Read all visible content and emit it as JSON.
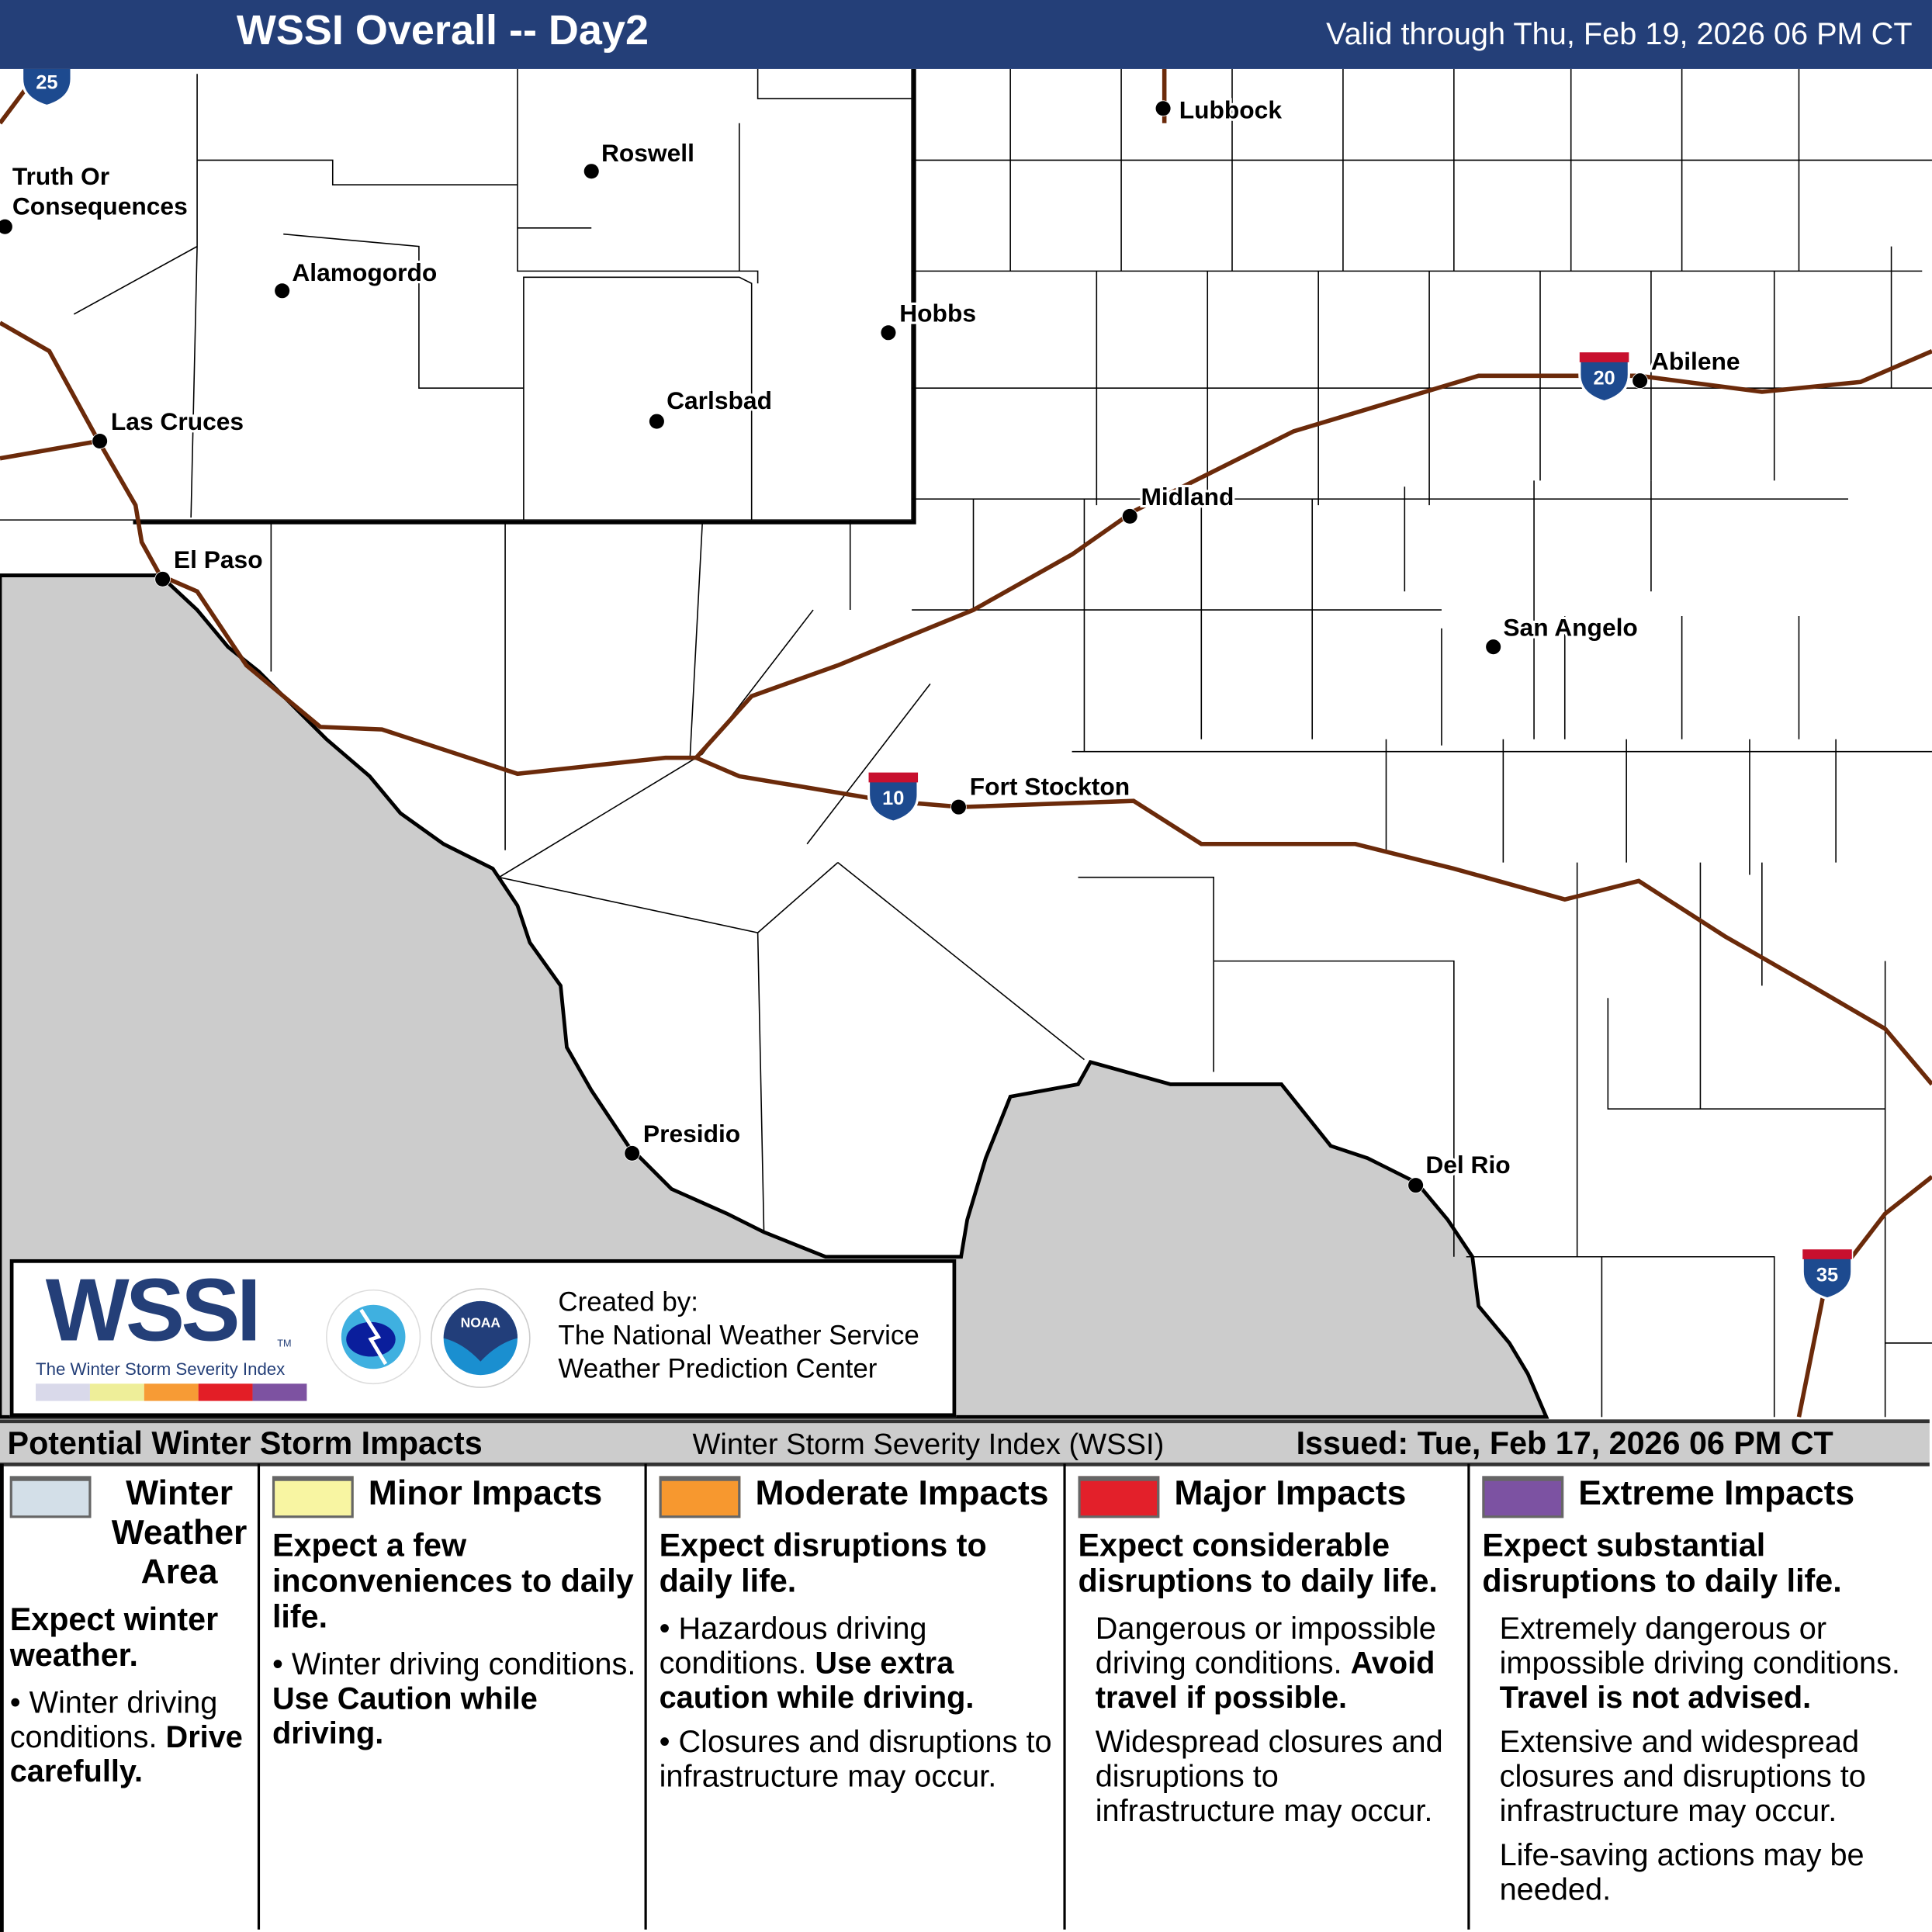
{
  "header": {
    "title": "WSSI Overall -- Day2",
    "valid": "Valid through Thu, Feb 19, 2026 06 PM CT",
    "color": "#243f78"
  },
  "map": {
    "land_color": "#ffffff",
    "mexico_color": "#cccccc",
    "road_color": "#6b2a0a",
    "cities": [
      {
        "name": "Lubbock"
      },
      {
        "name": "Roswell"
      },
      {
        "name": "Truth Or Consequences"
      },
      {
        "name": "Alamogordo"
      },
      {
        "name": "Hobbs"
      },
      {
        "name": "Abilene"
      },
      {
        "name": "Carlsbad"
      },
      {
        "name": "Las Cruces"
      },
      {
        "name": "Midland"
      },
      {
        "name": "El Paso"
      },
      {
        "name": "San Angelo"
      },
      {
        "name": "Fort Stockton"
      },
      {
        "name": "Presidio"
      },
      {
        "name": "Del Rio"
      }
    ],
    "shields": [
      {
        "route": "25"
      },
      {
        "route": "20"
      },
      {
        "route": "10"
      },
      {
        "route": "35"
      }
    ]
  },
  "logo": {
    "wordmark": "WSSI",
    "tm": "TM",
    "subtitle": "The Winter Storm Severity Index",
    "scale_colors": [
      "#d9d9ea",
      "#eeee99",
      "#f79b35",
      "#e31e26",
      "#7d52a1"
    ],
    "nws_text": "NATIONAL WEATHER SERVICE",
    "noaa_text": "NOAA",
    "created_by": "Created by:",
    "org1": "The National Weather Service",
    "org2": "Weather Prediction Center"
  },
  "strip": {
    "left": "Potential Winter Storm Impacts",
    "center": "Winter Storm Severity Index (WSSI)",
    "issued": "Issued: Tue, Feb 17, 2026 06 PM CT"
  },
  "legend": [
    {
      "title": "Winter Weather Area",
      "color": "#d3dfe8",
      "headline": "Expect winter weather.",
      "b1": "Winter driving conditions.",
      "b1_bold": "Drive carefully."
    },
    {
      "title": "Minor Impacts",
      "color": "#f8f5a2",
      "headline": "Expect a few inconveniences to daily life.",
      "b1": "Winter driving conditions.",
      "b1_bold": "Use Caution while driving."
    },
    {
      "title": "Moderate Impacts",
      "color": "#f7982f",
      "headline": "Expect disruptions to daily life.",
      "b1": "Hazardous driving conditions.",
      "b1_bold": "Use extra caution while driving.",
      "b2": "Closures and disruptions to infrastructure may occur."
    },
    {
      "title": "Major Impacts",
      "color": "#e3202a",
      "headline": "Expect considerable disruptions to daily life.",
      "b1": "Dangerous or impossible driving conditions.",
      "b1_bold": "Avoid travel if possible.",
      "b2": "Widespread closures and disruptions to infrastructure may occur."
    },
    {
      "title": "Extreme Impacts",
      "color": "#7c52a2",
      "headline": "Expect substantial disruptions to daily life.",
      "b1": "Extremely dangerous or impossible driving conditions.",
      "b1_bold": "Travel is not advised.",
      "b2": "Extensive and widespread closures and disruptions to infrastructure may occur.",
      "b3": "Life-saving actions may be needed."
    }
  ]
}
